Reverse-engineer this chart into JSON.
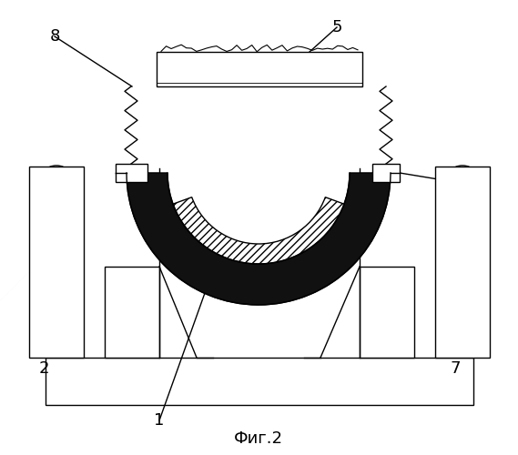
{
  "title": "Фиг.2",
  "title_fontsize": 13,
  "background_color": "#ffffff",
  "line_color": "#000000",
  "dark_fill": "#111111",
  "label_color": "#000000",
  "fig_width": 5.69,
  "fig_height": 5.0,
  "dpi": 100
}
